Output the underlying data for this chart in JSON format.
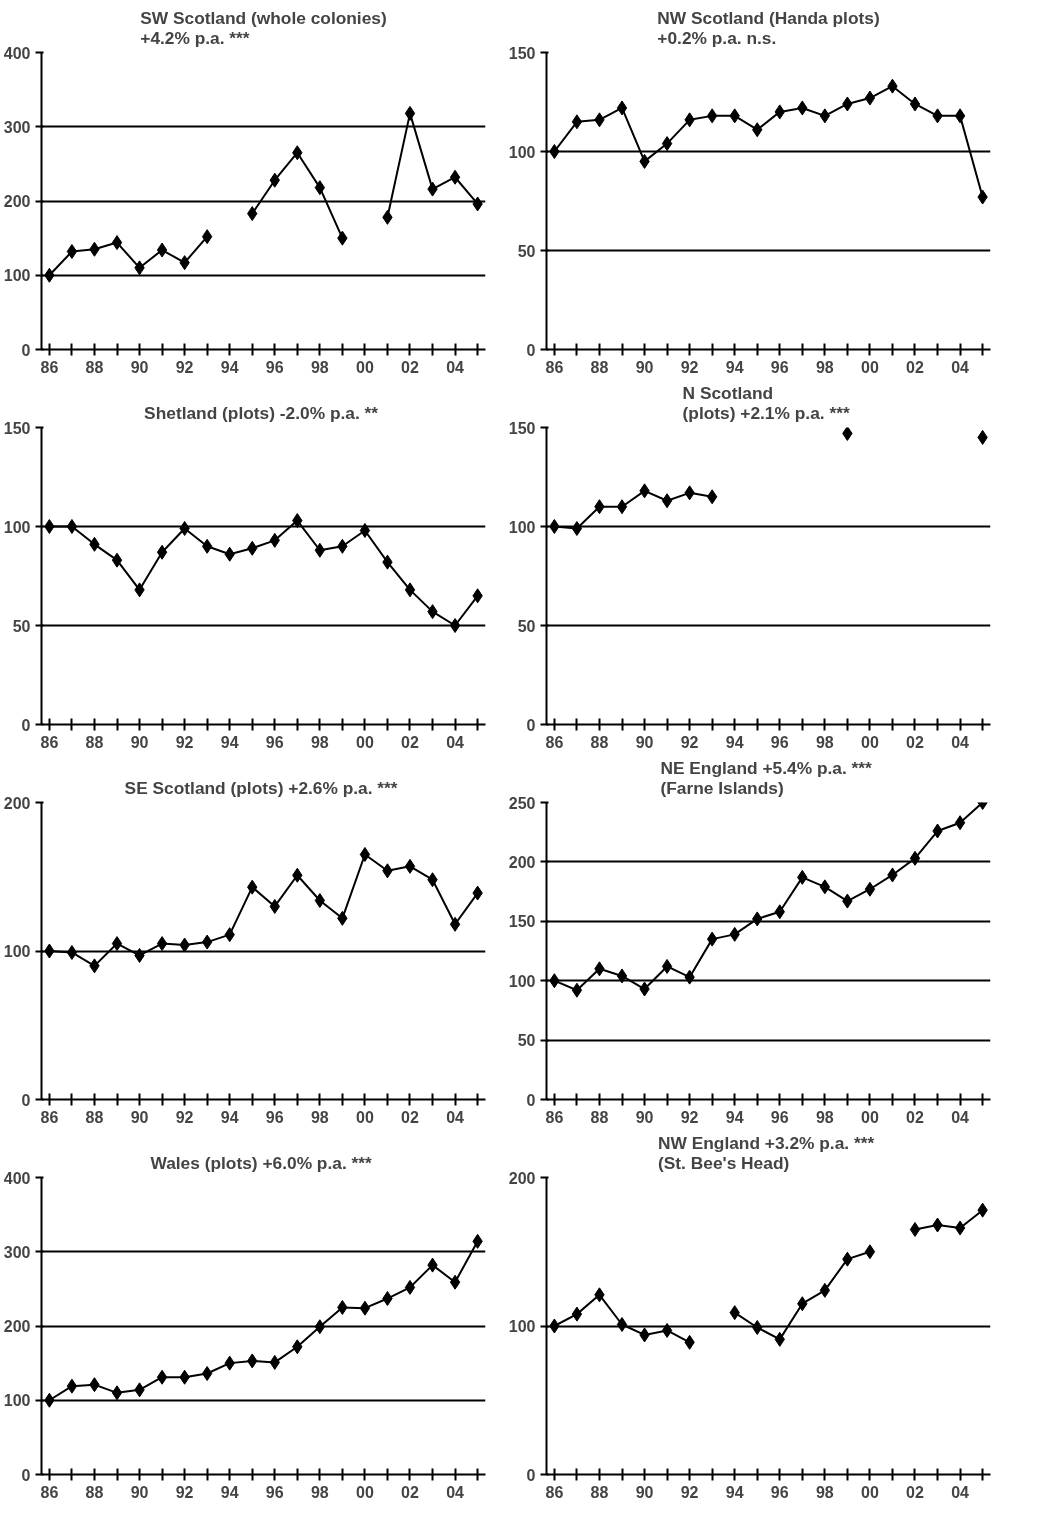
{
  "chart_data": [
    {
      "type": "line",
      "title": "SW Scotland (whole colonies)\n+4.2% p.a.  ***",
      "categories": [
        "86",
        null,
        "88",
        null,
        "90",
        null,
        "92",
        null,
        "94",
        null,
        "96",
        null,
        "98",
        null,
        "00",
        null,
        "02",
        null,
        "04",
        null
      ],
      "series": [
        {
          "color": "#000000",
          "values": [
            100,
            132,
            135,
            144,
            110,
            134,
            117,
            152,
            null,
            183,
            228,
            265,
            218,
            150,
            null,
            178,
            318,
            216,
            232,
            196
          ]
        }
      ],
      "ylim": [
        0,
        400
      ],
      "yticks": [
        0,
        100,
        200,
        300,
        400
      ],
      "grid": "y",
      "marker": "diamond",
      "line_style": "solid"
    },
    {
      "type": "line",
      "title": "NW Scotland (Handa plots)\n+0.2% p.a.  n.s.",
      "categories": [
        "86",
        null,
        "88",
        null,
        "90",
        null,
        "92",
        null,
        "94",
        null,
        "96",
        null,
        "98",
        null,
        "00",
        null,
        "02",
        null,
        "04",
        null
      ],
      "series": [
        {
          "color": "#000000",
          "values": [
            100,
            115,
            116,
            122,
            95,
            104,
            116,
            118,
            118,
            111,
            120,
            122,
            118,
            124,
            127,
            133,
            124,
            118,
            118,
            77
          ]
        }
      ],
      "ylim": [
        0,
        150
      ],
      "yticks": [
        0,
        50,
        100,
        150
      ],
      "grid": "y",
      "marker": "diamond",
      "line_style": "solid"
    },
    {
      "type": "line",
      "title": "Shetland (plots) -2.0% p.a.  **",
      "categories": [
        "86",
        null,
        "88",
        null,
        "90",
        null,
        "92",
        null,
        "94",
        null,
        "96",
        null,
        "98",
        null,
        "00",
        null,
        "02",
        null,
        "04",
        null
      ],
      "series": [
        {
          "color": "#000000",
          "values": [
            100,
            100,
            91,
            83,
            68,
            87,
            99,
            90,
            86,
            89,
            93,
            103,
            88,
            90,
            98,
            82,
            68,
            57,
            50,
            65
          ]
        }
      ],
      "ylim": [
        0,
        150
      ],
      "yticks": [
        0,
        50,
        100,
        150
      ],
      "grid": "y",
      "marker": "diamond",
      "line_style": "solid"
    },
    {
      "type": "line",
      "title": "N Scotland\n(plots) +2.1% p.a.  ***",
      "categories": [
        "86",
        null,
        "88",
        null,
        "90",
        null,
        "92",
        null,
        "94",
        null,
        "96",
        null,
        "98",
        null,
        "00",
        null,
        "02",
        null,
        "04",
        null
      ],
      "series": [
        {
          "color": "#000000",
          "values": [
            100,
            99,
            110,
            110,
            118,
            113,
            117,
            115,
            null,
            null,
            null,
            null,
            null,
            147,
            null,
            null,
            null,
            null,
            null,
            145
          ]
        }
      ],
      "ylim": [
        0,
        150
      ],
      "yticks": [
        0,
        50,
        100,
        150
      ],
      "grid": "y",
      "marker": "diamond",
      "line_style": "solid"
    },
    {
      "type": "line",
      "title": "SE Scotland (plots) +2.6% p.a.  ***",
      "categories": [
        "86",
        null,
        "88",
        null,
        "90",
        null,
        "92",
        null,
        "94",
        null,
        "96",
        null,
        "98",
        null,
        "00",
        null,
        "02",
        null,
        "04",
        null
      ],
      "series": [
        {
          "color": "#000000",
          "values": [
            100,
            99,
            90,
            105,
            97,
            105,
            104,
            106,
            111,
            143,
            130,
            151,
            134,
            122,
            165,
            154,
            157,
            148,
            118,
            139
          ]
        }
      ],
      "ylim": [
        0,
        200
      ],
      "yticks": [
        0,
        100,
        200
      ],
      "grid": "y",
      "marker": "diamond",
      "line_style": "solid"
    },
    {
      "type": "line",
      "title": "NE England +5.4% p.a.  ***\n(Farne Islands)",
      "categories": [
        "86",
        null,
        "88",
        null,
        "90",
        null,
        "92",
        null,
        "94",
        null,
        "96",
        null,
        "98",
        null,
        "00",
        null,
        "02",
        null,
        "04",
        null
      ],
      "series": [
        {
          "color": "#000000",
          "values": [
            100,
            92,
            110,
            104,
            93,
            112,
            103,
            135,
            139,
            152,
            158,
            187,
            179,
            167,
            177,
            189,
            203,
            226,
            233,
            250
          ]
        }
      ],
      "ylim": [
        0,
        250
      ],
      "yticks": [
        0,
        50,
        100,
        150,
        200,
        250
      ],
      "grid": "y",
      "marker": "diamond",
      "line_style": "solid"
    },
    {
      "type": "line",
      "title": "Wales (plots) +6.0% p.a.  ***",
      "categories": [
        "86",
        null,
        "88",
        null,
        "90",
        null,
        "92",
        null,
        "94",
        null,
        "96",
        null,
        "98",
        null,
        "00",
        null,
        "02",
        null,
        "04",
        null
      ],
      "series": [
        {
          "color": "#000000",
          "values": [
            100,
            119,
            121,
            110,
            114,
            131,
            131,
            136,
            150,
            153,
            151,
            172,
            199,
            225,
            224,
            237,
            252,
            282,
            259,
            314
          ]
        }
      ],
      "ylim": [
        0,
        400
      ],
      "yticks": [
        0,
        100,
        200,
        300,
        400
      ],
      "grid": "y",
      "marker": "diamond",
      "line_style": "solid"
    },
    {
      "type": "line",
      "title": "NW England +3.2% p.a.  ***\n(St. Bee's Head)",
      "categories": [
        "86",
        null,
        "88",
        null,
        "90",
        null,
        "92",
        null,
        "94",
        null,
        "96",
        null,
        "98",
        null,
        "00",
        null,
        "02",
        null,
        "04",
        null
      ],
      "series": [
        {
          "color": "#000000",
          "values": [
            100,
            108,
            121,
            101,
            94,
            97,
            89,
            null,
            109,
            99,
            91,
            115,
            124,
            145,
            150,
            null,
            165,
            168,
            166,
            178
          ]
        }
      ],
      "ylim": [
        0,
        200
      ],
      "yticks": [
        0,
        100,
        200
      ],
      "grid": "y",
      "marker": "diamond",
      "line_style": "solid"
    }
  ]
}
